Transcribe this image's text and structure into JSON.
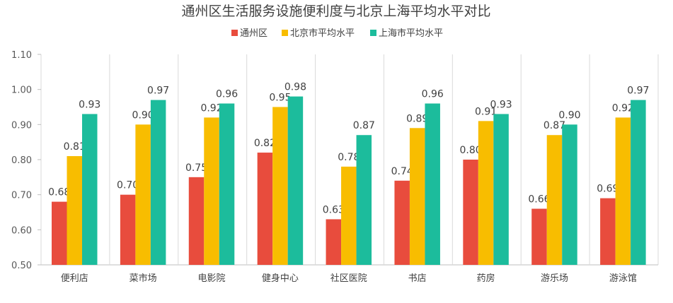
{
  "chart_data": {
    "type": "bar",
    "title": "通州区生活服务设施便利度与北京上海平均水平对比",
    "xlabel": "",
    "ylabel": "",
    "ylim": [
      0.5,
      1.1
    ],
    "yticks": [
      "0.50",
      "0.60",
      "0.70",
      "0.80",
      "0.90",
      "1.00",
      "1.10"
    ],
    "grid": "vertical-category-separators",
    "legend_position": "top-center",
    "categories": [
      "便利店",
      "菜市场",
      "电影院",
      "健身中心",
      "社区医院",
      "书店",
      "药房",
      "游乐场",
      "游泳馆"
    ],
    "series": [
      {
        "name": "通州区",
        "color": "#e84c3d",
        "values": [
          0.68,
          0.7,
          0.75,
          0.82,
          0.63,
          0.74,
          0.8,
          0.66,
          0.69
        ],
        "labels": [
          "0.68",
          "0.70",
          "0.75",
          "0.82",
          "0.63",
          "0.74",
          "0.80",
          "0.66",
          "0.69"
        ]
      },
      {
        "name": "北京市平均水平",
        "color": "#f8bd00",
        "values": [
          0.81,
          0.9,
          0.92,
          0.95,
          0.78,
          0.89,
          0.91,
          0.87,
          0.92
        ],
        "labels": [
          "0.81",
          "0.90",
          "0.92",
          "0.95",
          "0.78",
          "0.89",
          "0.91",
          "0.87",
          "0.92"
        ]
      },
      {
        "name": "上海市平均水平",
        "color": "#1cbc9c",
        "values": [
          0.93,
          0.97,
          0.96,
          0.98,
          0.87,
          0.96,
          0.93,
          0.9,
          0.97
        ],
        "labels": [
          "0.93",
          "0.97",
          "0.96",
          "0.98",
          "0.87",
          "0.96",
          "0.93",
          "0.90",
          "0.97"
        ]
      }
    ]
  }
}
